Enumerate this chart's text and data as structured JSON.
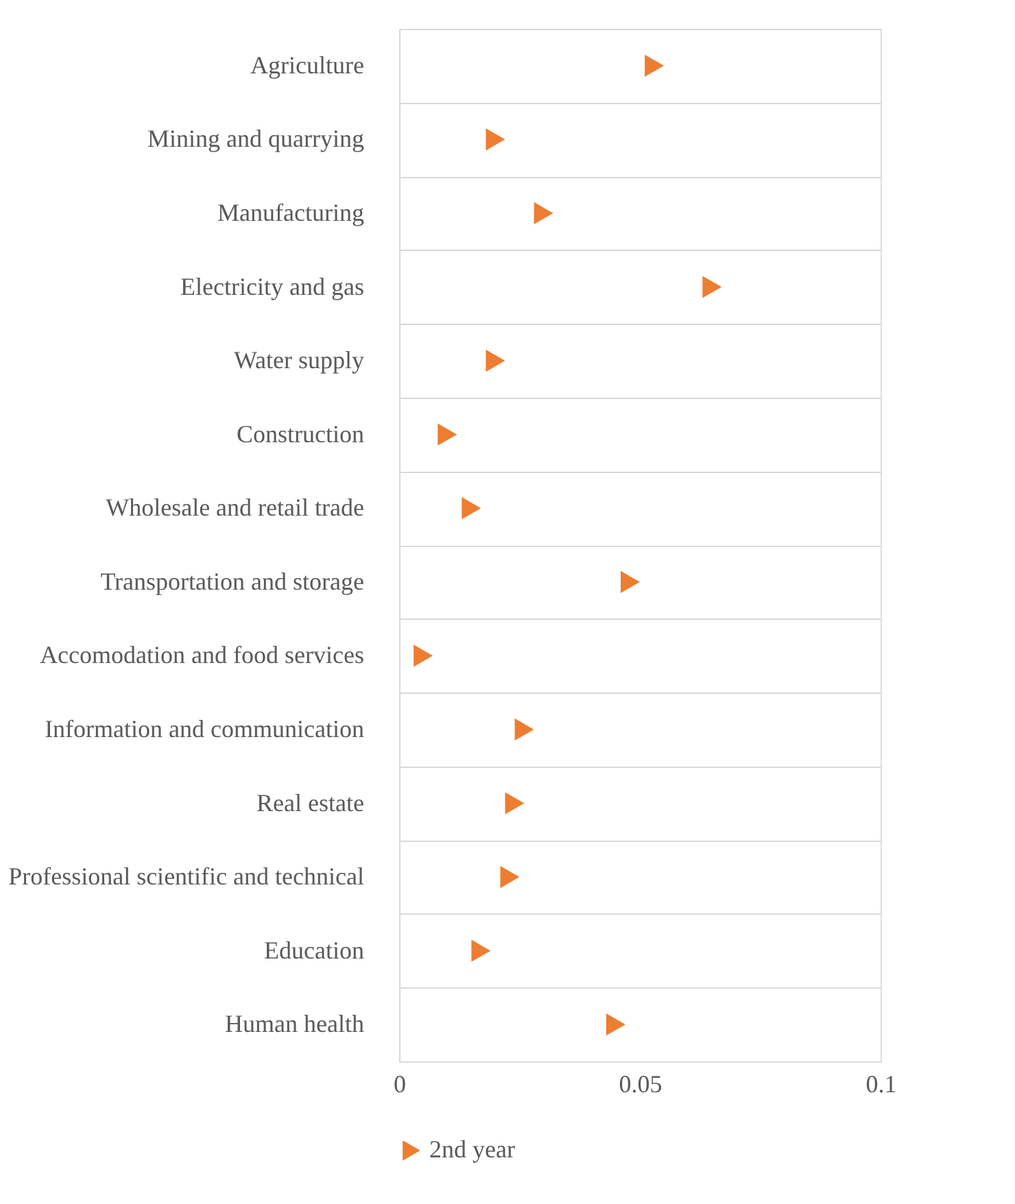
{
  "chart_data": {
    "type": "scatter",
    "orientation": "horizontal",
    "categories": [
      "Agriculture",
      "Mining and quarrying",
      "Manufacturing",
      "Electricity and gas",
      "Water supply",
      "Construction",
      "Wholesale and retail trade",
      "Transportation and storage",
      "Accomodation and food services",
      "Information and communication",
      "Real estate",
      "Professional scientific and technical",
      "Education",
      "Human health"
    ],
    "series": [
      {
        "name": "2nd year",
        "color": "#ed7d31",
        "values": [
          0.053,
          0.02,
          0.03,
          0.065,
          0.02,
          0.01,
          0.015,
          0.048,
          0.005,
          0.026,
          0.024,
          0.023,
          0.017,
          0.045
        ]
      }
    ],
    "xlim": [
      0,
      0.1
    ],
    "xticks": [
      0,
      0.05,
      0.1
    ],
    "grid": "y",
    "legend": "bottom",
    "marker": "triangle"
  }
}
